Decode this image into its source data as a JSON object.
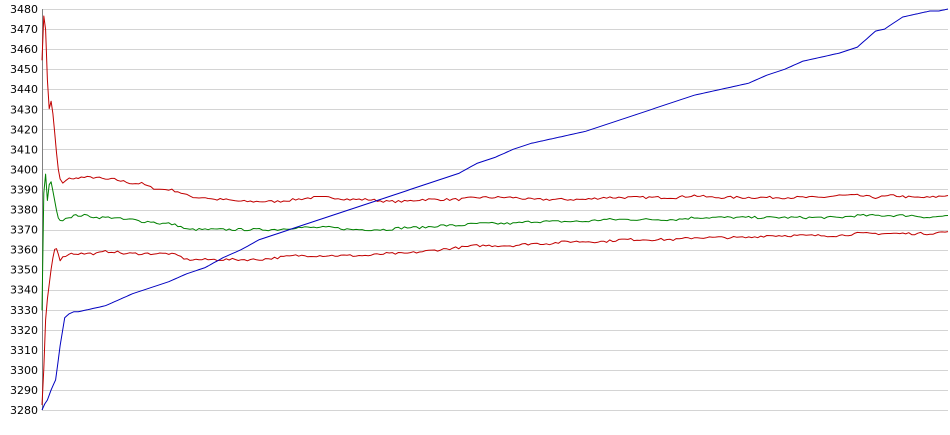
{
  "chart_data": {
    "type": "line",
    "title": "",
    "xlabel": "",
    "ylabel": "",
    "xlim": [
      0,
      100
    ],
    "ylim": [
      3280,
      3480
    ],
    "yticks": [
      3280,
      3290,
      3300,
      3310,
      3320,
      3330,
      3340,
      3350,
      3360,
      3370,
      3380,
      3390,
      3400,
      3410,
      3420,
      3430,
      3440,
      3450,
      3460,
      3470,
      3480
    ],
    "grid": true,
    "legend": "none",
    "series": [
      {
        "color": "#c00000",
        "x": [
          0,
          0.2,
          0.4,
          0.6,
          0.8,
          1.0,
          1.2,
          1.4,
          1.6,
          1.8,
          2.0,
          2.3,
          2.6,
          3.0,
          3.5,
          4.0,
          5,
          6,
          7,
          8,
          9,
          10,
          11,
          12,
          13,
          14,
          15,
          16,
          17,
          18,
          19,
          20,
          22,
          24,
          26,
          28,
          30,
          32,
          34,
          36,
          38,
          40,
          42,
          44,
          46,
          48,
          50,
          52,
          54,
          56,
          58,
          60,
          62,
          64,
          66,
          68,
          70,
          72,
          74,
          76,
          78,
          80,
          82,
          84,
          86,
          88,
          90,
          92,
          94,
          96,
          98,
          100
        ],
        "y": [
          3455,
          3476,
          3470,
          3445,
          3430,
          3434,
          3428,
          3418,
          3408,
          3400,
          3395,
          3393,
          3394,
          3396,
          3395,
          3396,
          3396,
          3396,
          3395,
          3395,
          3394,
          3393,
          3393,
          3391,
          3390,
          3390,
          3389,
          3387,
          3386,
          3386,
          3385,
          3385,
          3384,
          3384,
          3384,
          3385,
          3386,
          3386,
          3385,
          3385,
          3384,
          3384,
          3385,
          3385,
          3385,
          3386,
          3386,
          3386,
          3385,
          3385,
          3385,
          3385,
          3386,
          3386,
          3386,
          3386,
          3386,
          3387,
          3386,
          3386,
          3386,
          3386,
          3386,
          3386,
          3386,
          3387,
          3387,
          3386,
          3387,
          3386,
          3386,
          3387
        ]
      },
      {
        "color": "#008000",
        "x": [
          0,
          0.2,
          0.4,
          0.6,
          0.8,
          1.0,
          1.2,
          1.4,
          1.6,
          1.8,
          2.0,
          2.3,
          2.6,
          3.0,
          3.5,
          4.0,
          5,
          6,
          7,
          8,
          9,
          10,
          11,
          12,
          13,
          14,
          15,
          16,
          17,
          18,
          19,
          20,
          22,
          24,
          26,
          28,
          30,
          32,
          34,
          36,
          38,
          40,
          42,
          44,
          46,
          48,
          50,
          52,
          54,
          56,
          58,
          60,
          62,
          64,
          66,
          68,
          70,
          72,
          74,
          76,
          78,
          80,
          82,
          84,
          86,
          88,
          90,
          92,
          94,
          96,
          98,
          100
        ],
        "y": [
          3330,
          3388,
          3398,
          3384,
          3392,
          3394,
          3389,
          3384,
          3380,
          3376,
          3374,
          3375,
          3376,
          3376,
          3377,
          3377,
          3377,
          3376,
          3376,
          3376,
          3375,
          3375,
          3374,
          3374,
          3373,
          3373,
          3372,
          3370,
          3370,
          3370,
          3370,
          3370,
          3370,
          3370,
          3370,
          3371,
          3371,
          3371,
          3370,
          3370,
          3370,
          3371,
          3371,
          3372,
          3372,
          3373,
          3373,
          3373,
          3374,
          3374,
          3374,
          3374,
          3375,
          3375,
          3375,
          3375,
          3375,
          3376,
          3376,
          3376,
          3376,
          3376,
          3376,
          3376,
          3376,
          3376,
          3377,
          3377,
          3377,
          3377,
          3376,
          3377
        ]
      },
      {
        "color": "#c00000",
        "x": [
          0,
          0.2,
          0.4,
          0.6,
          0.8,
          1.0,
          1.2,
          1.4,
          1.6,
          1.8,
          2.0,
          2.3,
          2.6,
          3.0,
          3.5,
          4.0,
          5,
          6,
          7,
          8,
          9,
          10,
          11,
          12,
          13,
          14,
          15,
          16,
          17,
          18,
          19,
          20,
          22,
          24,
          26,
          28,
          30,
          32,
          34,
          36,
          38,
          40,
          42,
          44,
          46,
          48,
          50,
          52,
          54,
          56,
          58,
          60,
          62,
          64,
          66,
          68,
          70,
          72,
          74,
          76,
          78,
          80,
          82,
          84,
          86,
          88,
          90,
          92,
          94,
          96,
          98,
          100
        ],
        "y": [
          3282,
          3300,
          3325,
          3335,
          3342,
          3350,
          3356,
          3360,
          3361,
          3358,
          3355,
          3356,
          3357,
          3358,
          3358,
          3358,
          3358,
          3358,
          3359,
          3359,
          3358,
          3358,
          3358,
          3358,
          3358,
          3358,
          3357,
          3355,
          3355,
          3355,
          3355,
          3355,
          3355,
          3355,
          3356,
          3357,
          3357,
          3357,
          3357,
          3357,
          3358,
          3358,
          3359,
          3360,
          3361,
          3362,
          3362,
          3362,
          3363,
          3363,
          3364,
          3364,
          3364,
          3365,
          3365,
          3365,
          3365,
          3366,
          3366,
          3366,
          3366,
          3367,
          3367,
          3367,
          3367,
          3367,
          3368,
          3368,
          3368,
          3368,
          3368,
          3369
        ]
      },
      {
        "color": "#0000c0",
        "x": [
          0,
          0.3,
          0.6,
          1.0,
          1.5,
          2.0,
          2.5,
          3.0,
          3.5,
          4,
          5,
          6,
          7,
          8,
          9,
          10,
          12,
          14,
          16,
          18,
          20,
          22,
          24,
          26,
          28,
          30,
          32,
          34,
          36,
          38,
          40,
          42,
          44,
          46,
          48,
          50,
          52,
          54,
          56,
          58,
          60,
          62,
          64,
          66,
          68,
          70,
          72,
          74,
          76,
          78,
          80,
          82,
          84,
          86,
          88,
          90,
          91,
          92,
          93,
          94,
          95,
          96,
          97,
          98,
          99,
          100
        ],
        "y": [
          3280,
          3283,
          3285,
          3290,
          3295,
          3312,
          3326,
          3328,
          3329,
          3329,
          3330,
          3331,
          3332,
          3334,
          3336,
          3338,
          3341,
          3344,
          3348,
          3351,
          3356,
          3360,
          3365,
          3368,
          3371,
          3374,
          3377,
          3380,
          3383,
          3386,
          3389,
          3392,
          3395,
          3398,
          3403,
          3406,
          3410,
          3413,
          3415,
          3417,
          3419,
          3422,
          3425,
          3428,
          3431,
          3434,
          3437,
          3439,
          3441,
          3443,
          3447,
          3450,
          3454,
          3456,
          3458,
          3461,
          3465,
          3469,
          3470,
          3473,
          3476,
          3477,
          3478,
          3479,
          3479,
          3480
        ]
      }
    ]
  }
}
